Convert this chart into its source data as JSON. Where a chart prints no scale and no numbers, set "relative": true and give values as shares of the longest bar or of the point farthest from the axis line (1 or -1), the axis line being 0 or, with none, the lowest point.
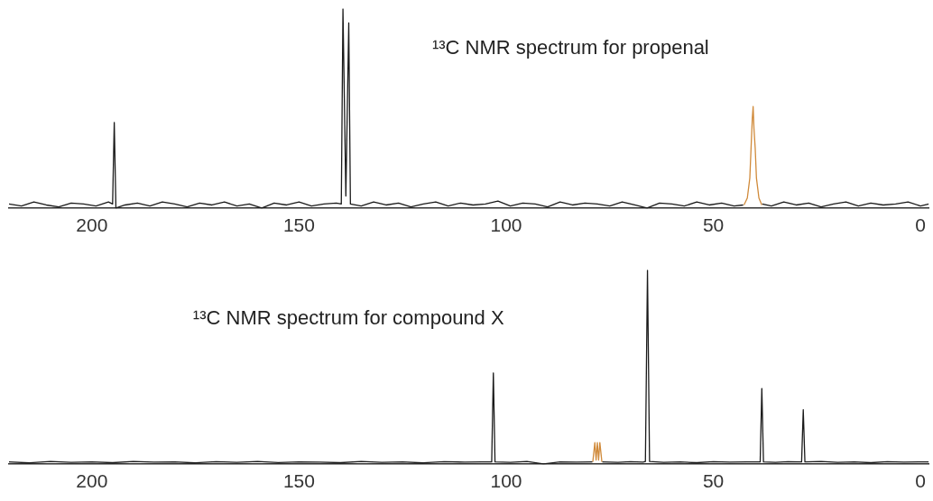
{
  "chart_data": [
    {
      "type": "line",
      "relative": true,
      "xlim": [
        220,
        -2
      ],
      "xticks": [
        200,
        150,
        100,
        50,
        0
      ],
      "grid": false,
      "marker": "none",
      "annotations": [
        "¹³C NMR spectrum for propenal"
      ],
      "series": [
        {
          "color": "#1a1a1a",
          "x": [
            220,
            217,
            214,
            211,
            208,
            205,
            202,
            199,
            196,
            195.0,
            194.6,
            194.2,
            192,
            189,
            186,
            183,
            180,
            177,
            174,
            171,
            168,
            165,
            162,
            159,
            156,
            153,
            150,
            147,
            144,
            141,
            139.8,
            139.4,
            138.7,
            138.0,
            137.6,
            135,
            132,
            129,
            126,
            123,
            120,
            117,
            114,
            111,
            108,
            105,
            102,
            99,
            96,
            93,
            90,
            87,
            84,
            81,
            78,
            75,
            72,
            69,
            66,
            63,
            60,
            57,
            54,
            51,
            48,
            45,
            42.8,
            40.5,
            38.2,
            36,
            33,
            30,
            27,
            24,
            21,
            18,
            15,
            12,
            9,
            6,
            3,
            0,
            -2
          ],
          "values": [
            0.02,
            0.01,
            0.03,
            0.015,
            0.005,
            0.025,
            0.02,
            0.01,
            0.03,
            0.02,
            0.43,
            0.0,
            0.015,
            0.025,
            0.01,
            0.03,
            0.02,
            0.005,
            0.025,
            0.015,
            0.03,
            0.01,
            0.02,
            0.0,
            0.025,
            0.015,
            0.03,
            0.01,
            0.02,
            0.025,
            0.02,
            1,
            0.06,
            0.93,
            0.02,
            0.01,
            0.03,
            0.015,
            0.025,
            0.005,
            0.02,
            0.03,
            0.01,
            0.025,
            0.015,
            0.02,
            0.035,
            0.01,
            0.025,
            0.02,
            0.005,
            0.03,
            0.015,
            0.025,
            0.02,
            0.01,
            0.03,
            0.015,
            0.0,
            0.025,
            0.02,
            0.01,
            0.03,
            0.015,
            0.025,
            0.01,
            0.015,
            null,
            0.02,
            0.01,
            0.03,
            0.015,
            0.025,
            0.005,
            0.02,
            0.03,
            0.01,
            0.025,
            0.015,
            0.02,
            0.03,
            0.01,
            0.02
          ]
        },
        {
          "color": "#d08a3a",
          "x": [
            42.6,
            41.8,
            41.2,
            40.9,
            40.6,
            40.4,
            40.2,
            39.9,
            39.6,
            39.0,
            38.3
          ],
          "values": [
            0.015,
            0.05,
            0.15,
            0.3,
            0.45,
            0.51,
            0.4,
            0.3,
            0.15,
            0.05,
            0.015
          ]
        }
      ]
    },
    {
      "type": "line",
      "relative": true,
      "xlim": [
        220,
        -2
      ],
      "xticks": [
        200,
        150,
        100,
        50,
        0
      ],
      "grid": false,
      "marker": "none",
      "annotations": [
        "¹³C NMR spectrum for compound X"
      ],
      "series": [
        {
          "color": "#1a1a1a",
          "x": [
            220,
            215,
            210,
            205,
            200,
            195,
            190,
            185,
            180,
            175,
            170,
            165,
            160,
            155,
            150,
            145,
            140,
            135,
            130,
            125,
            120,
            115,
            110,
            106,
            103.5,
            103.1,
            102.7,
            99,
            95,
            91,
            87,
            83,
            79.2,
            78,
            76.8,
            73,
            70,
            67,
            66.4,
            65.9,
            65.4,
            62,
            58,
            54,
            50,
            46,
            42,
            38.7,
            38.3,
            37.9,
            35,
            32,
            28.7,
            28.3,
            27.9,
            24,
            20,
            16,
            12,
            8,
            4,
            0,
            -2
          ],
          "values": [
            0.01,
            0.005,
            0.012,
            0.008,
            0.01,
            0.006,
            0.012,
            0.009,
            0.01,
            0.005,
            0.011,
            0.008,
            0.012,
            0.007,
            0.01,
            0.009,
            0.006,
            0.012,
            0.008,
            0.01,
            0.005,
            0.011,
            0.009,
            0.01,
            0.01,
            0.47,
            0.01,
            0.008,
            0.012,
            0.0,
            0.01,
            0.009,
            0.01,
            null,
            0.01,
            0.008,
            0.011,
            0.009,
            0.012,
            1,
            0.012,
            0.008,
            0.01,
            0.006,
            0.011,
            0.009,
            0.01,
            0.01,
            0.39,
            0.01,
            0.008,
            0.011,
            0.01,
            0.28,
            0.01,
            0.012,
            0.008,
            0.01,
            0.006,
            0.011,
            0.009,
            0.01,
            0.01
          ]
        },
        {
          "color": "#d08a3a",
          "x": [
            79.1,
            78.6,
            78.3,
            78.0,
            77.7,
            77.4,
            76.9
          ],
          "values": [
            0.01,
            0.11,
            0.02,
            0.11,
            0.02,
            0.11,
            0.01
          ]
        }
      ]
    }
  ]
}
